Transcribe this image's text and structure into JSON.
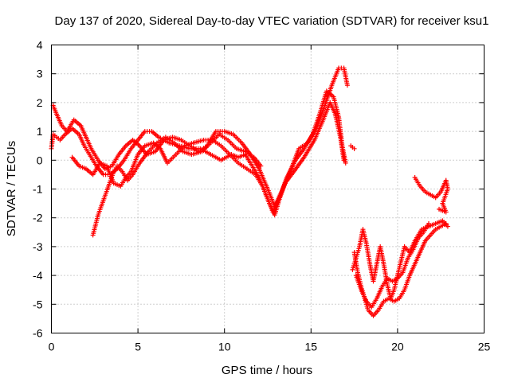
{
  "chart_data": {
    "type": "scatter",
    "title": "Day 137 of 2020, Sidereal Day-to-day VTEC variation (SDTVAR) for receiver ksu1",
    "xlabel": "GPS time / hours",
    "ylabel": "SDTVAR / TECUs",
    "xlim": [
      0,
      25
    ],
    "ylim": [
      -6,
      4
    ],
    "xticks": [
      "0",
      "5",
      "10",
      "15",
      "20",
      "25"
    ],
    "yticks": [
      "-6",
      "-5",
      "-4",
      "-3",
      "-2",
      "-1",
      "0",
      "1",
      "2",
      "3",
      "4"
    ],
    "grid": true,
    "marker": "plus",
    "color": "#ff0000",
    "series": [
      {
        "values": [
          [
            0.0,
            0.4
          ],
          [
            0.1,
            0.9
          ],
          [
            0.3,
            0.8
          ],
          [
            0.5,
            0.7
          ],
          [
            0.8,
            0.9
          ],
          [
            1.2,
            1.1
          ],
          [
            1.6,
            0.9
          ],
          [
            1.9,
            0.5
          ],
          [
            2.2,
            0.2
          ],
          [
            2.6,
            -0.2
          ],
          [
            3.0,
            -0.5
          ],
          [
            3.4,
            -0.5
          ],
          [
            3.8,
            -0.3
          ],
          [
            4.2,
            0.0
          ],
          [
            4.6,
            0.4
          ],
          [
            5.0,
            0.7
          ],
          [
            5.4,
            1.0
          ],
          [
            5.8,
            1.0
          ],
          [
            6.2,
            0.8
          ],
          [
            6.8,
            0.6
          ],
          [
            7.4,
            0.5
          ],
          [
            8.0,
            0.4
          ],
          [
            8.6,
            0.4
          ],
          [
            9.2,
            0.2
          ],
          [
            9.8,
            0.0
          ],
          [
            10.4,
            0.2
          ],
          [
            10.8,
            0.1
          ],
          [
            11.2,
            0.2
          ],
          [
            11.6,
            -0.2
          ],
          [
            12.0,
            -0.6
          ],
          [
            12.4,
            -1.2
          ],
          [
            12.8,
            -1.8
          ],
          [
            13.1,
            -1.4
          ],
          [
            13.5,
            -0.8
          ],
          [
            14.0,
            -0.4
          ],
          [
            14.6,
            0.1
          ],
          [
            15.2,
            0.7
          ],
          [
            15.7,
            1.4
          ],
          [
            16.1,
            2.0
          ],
          [
            16.4,
            1.6
          ],
          [
            16.7,
            0.8
          ],
          [
            16.9,
            0.0
          ]
        ]
      },
      {
        "values": [
          [
            0.1,
            1.9
          ],
          [
            0.3,
            1.6
          ],
          [
            0.6,
            1.2
          ],
          [
            0.9,
            1.0
          ],
          [
            1.3,
            1.4
          ],
          [
            1.7,
            1.2
          ],
          [
            2.0,
            0.8
          ],
          [
            2.3,
            0.4
          ],
          [
            2.7,
            0.0
          ],
          [
            3.1,
            -0.3
          ],
          [
            3.5,
            -0.2
          ],
          [
            3.9,
            0.2
          ],
          [
            4.3,
            0.5
          ],
          [
            4.7,
            0.7
          ],
          [
            5.1,
            0.5
          ],
          [
            5.5,
            0.2
          ],
          [
            6.0,
            0.3
          ],
          [
            6.5,
            0.7
          ],
          [
            7.0,
            0.8
          ],
          [
            7.5,
            0.7
          ],
          [
            8.0,
            0.5
          ],
          [
            8.5,
            0.3
          ],
          [
            9.0,
            0.5
          ],
          [
            9.5,
            1.0
          ],
          [
            10.0,
            1.0
          ],
          [
            10.5,
            0.9
          ],
          [
            11.0,
            0.6
          ],
          [
            11.5,
            0.2
          ],
          [
            12.0,
            -0.3
          ],
          [
            12.5,
            -1.0
          ],
          [
            12.9,
            -1.6
          ],
          [
            13.3,
            -1.1
          ],
          [
            13.8,
            -0.4
          ],
          [
            14.3,
            0.4
          ],
          [
            14.8,
            0.6
          ],
          [
            15.3,
            1.1
          ],
          [
            15.8,
            1.9
          ],
          [
            16.2,
            2.6
          ],
          [
            16.6,
            3.2
          ],
          [
            16.9,
            3.2
          ],
          [
            17.1,
            2.6
          ]
        ]
      },
      {
        "values": [
          [
            1.2,
            0.1
          ],
          [
            1.6,
            -0.2
          ],
          [
            2.0,
            -0.3
          ],
          [
            2.4,
            -0.5
          ],
          [
            2.8,
            -0.1
          ],
          [
            3.2,
            -0.2
          ],
          [
            3.6,
            -0.8
          ],
          [
            4.0,
            -0.9
          ],
          [
            4.3,
            -0.6
          ],
          [
            4.6,
            -0.4
          ],
          [
            5.0,
            0.2
          ],
          [
            5.4,
            0.5
          ],
          [
            5.9,
            0.6
          ],
          [
            6.3,
            0.4
          ],
          [
            6.7,
            -0.1
          ],
          [
            7.2,
            0.2
          ],
          [
            7.7,
            0.5
          ],
          [
            8.2,
            0.6
          ],
          [
            8.8,
            0.7
          ],
          [
            9.3,
            0.7
          ],
          [
            9.8,
            0.5
          ],
          [
            10.3,
            0.2
          ],
          [
            10.8,
            -0.1
          ],
          [
            11.3,
            -0.3
          ],
          [
            11.8,
            -0.5
          ],
          [
            12.2,
            -0.9
          ],
          [
            12.6,
            -1.5
          ],
          [
            12.9,
            -1.9
          ],
          [
            13.2,
            -1.3
          ],
          [
            13.6,
            -0.6
          ],
          [
            14.1,
            0.0
          ],
          [
            14.6,
            0.4
          ],
          [
            15.1,
            0.9
          ],
          [
            15.5,
            1.6
          ],
          [
            15.9,
            2.4
          ],
          [
            16.3,
            2.2
          ],
          [
            16.6,
            1.5
          ],
          [
            16.8,
            0.5
          ],
          [
            17.0,
            -0.1
          ]
        ]
      },
      {
        "values": [
          [
            2.4,
            -2.6
          ],
          [
            2.7,
            -1.9
          ],
          [
            3.0,
            -1.4
          ],
          [
            3.3,
            -0.9
          ],
          [
            3.6,
            -0.4
          ],
          [
            3.8,
            -0.2
          ],
          [
            4.1,
            -0.4
          ],
          [
            4.4,
            -0.7
          ],
          [
            4.7,
            -0.5
          ],
          [
            5.1,
            -0.1
          ],
          [
            5.6,
            0.3
          ],
          [
            6.1,
            0.6
          ],
          [
            6.6,
            0.8
          ],
          [
            7.1,
            0.6
          ],
          [
            7.6,
            0.3
          ],
          [
            8.1,
            0.2
          ],
          [
            8.7,
            0.3
          ],
          [
            9.2,
            0.6
          ],
          [
            9.7,
            0.9
          ],
          [
            10.2,
            0.7
          ],
          [
            10.7,
            0.4
          ],
          [
            11.2,
            0.3
          ],
          [
            11.7,
            0.1
          ],
          [
            12.1,
            -0.2
          ]
        ]
      },
      {
        "values": [
          [
            17.3,
            0.5
          ],
          [
            17.5,
            0.4
          ]
        ]
      },
      {
        "values": [
          [
            17.4,
            -3.8
          ],
          [
            17.6,
            -3.4
          ],
          [
            17.8,
            -3.0
          ],
          [
            18.0,
            -2.4
          ],
          [
            18.2,
            -2.9
          ],
          [
            18.4,
            -3.6
          ],
          [
            18.6,
            -4.2
          ],
          [
            18.8,
            -3.6
          ],
          [
            19.0,
            -3.0
          ],
          [
            19.2,
            -3.6
          ],
          [
            19.4,
            -4.3
          ],
          [
            19.6,
            -4.8
          ],
          [
            19.8,
            -4.5
          ],
          [
            20.0,
            -4.0
          ],
          [
            20.2,
            -3.5
          ],
          [
            20.4,
            -3.0
          ],
          [
            20.7,
            -3.2
          ],
          [
            21.0,
            -2.8
          ],
          [
            21.4,
            -2.4
          ],
          [
            21.8,
            -2.3
          ],
          [
            22.2,
            -2.2
          ],
          [
            22.6,
            -2.1
          ],
          [
            22.9,
            -2.3
          ]
        ]
      },
      {
        "values": [
          [
            17.5,
            -3.2
          ],
          [
            17.7,
            -3.9
          ],
          [
            17.9,
            -4.4
          ],
          [
            18.1,
            -4.8
          ],
          [
            18.3,
            -5.2
          ],
          [
            18.6,
            -5.4
          ],
          [
            18.9,
            -5.2
          ],
          [
            19.2,
            -4.9
          ],
          [
            19.5,
            -4.8
          ],
          [
            19.8,
            -4.9
          ],
          [
            20.1,
            -4.8
          ],
          [
            20.4,
            -4.5
          ],
          [
            20.7,
            -4.0
          ],
          [
            21.0,
            -3.6
          ],
          [
            21.3,
            -3.2
          ],
          [
            21.6,
            -2.8
          ],
          [
            21.9,
            -2.6
          ],
          [
            22.2,
            -2.4
          ],
          [
            22.5,
            -2.3
          ],
          [
            22.8,
            -2.2
          ]
        ]
      },
      {
        "values": [
          [
            17.6,
            -4.0
          ],
          [
            17.9,
            -4.5
          ],
          [
            18.2,
            -4.9
          ],
          [
            18.5,
            -5.1
          ],
          [
            18.8,
            -4.8
          ],
          [
            19.1,
            -4.4
          ],
          [
            19.4,
            -4.1
          ],
          [
            19.7,
            -4.2
          ],
          [
            20.0,
            -4.1
          ],
          [
            20.3,
            -3.9
          ],
          [
            20.6,
            -3.4
          ],
          [
            20.9,
            -3.1
          ],
          [
            21.2,
            -2.7
          ],
          [
            21.5,
            -2.5
          ],
          [
            21.8,
            -2.2
          ]
        ]
      },
      {
        "values": [
          [
            21.0,
            -0.6
          ],
          [
            21.3,
            -0.9
          ],
          [
            21.6,
            -1.1
          ],
          [
            21.9,
            -1.2
          ],
          [
            22.2,
            -1.3
          ],
          [
            22.5,
            -1.1
          ],
          [
            22.8,
            -0.7
          ],
          [
            22.9,
            -1.0
          ],
          [
            22.6,
            -1.5
          ],
          [
            22.8,
            -1.8
          ],
          [
            22.4,
            -1.7
          ]
        ]
      }
    ]
  }
}
